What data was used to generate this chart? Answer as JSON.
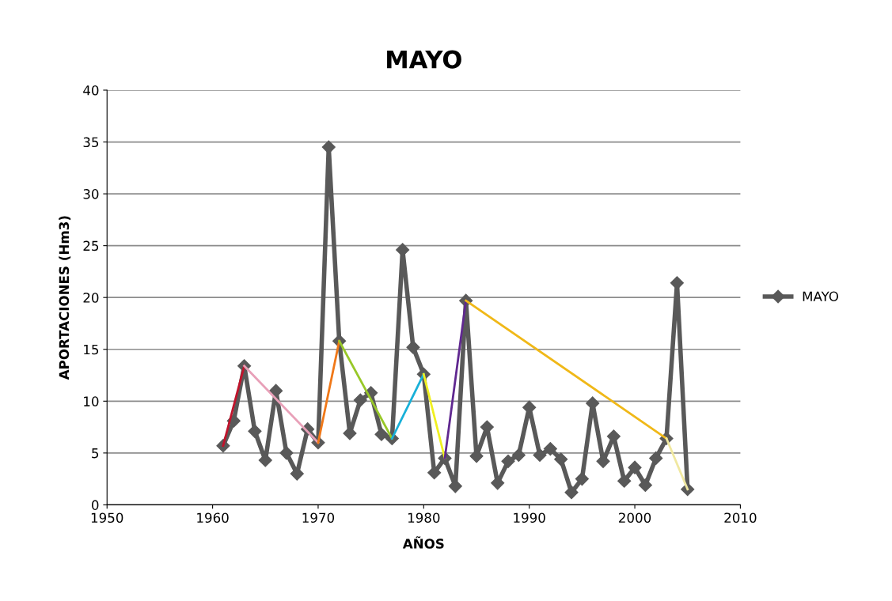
{
  "chart_data": {
    "type": "line",
    "title": "MAYO",
    "xlabel": "AÑOS",
    "ylabel": "APORTACIONES (Hm3)",
    "xlim": [
      1950,
      2010
    ],
    "xticks": [
      1950,
      1960,
      1970,
      1980,
      1990,
      2000,
      2010
    ],
    "ylim": [
      0,
      40
    ],
    "yticks": [
      0,
      5,
      10,
      15,
      20,
      25,
      30,
      35,
      40
    ],
    "grid": "y",
    "legend": "right",
    "marker": "diamond",
    "series": [
      {
        "name": "MAYO",
        "color": "#595959",
        "x": [
          1961,
          1962,
          1963,
          1964,
          1965,
          1966,
          1967,
          1968,
          1969,
          1970,
          1971,
          1972,
          1973,
          1974,
          1975,
          1976,
          1977,
          1978,
          1979,
          1980,
          1981,
          1982,
          1983,
          1984,
          1985,
          1986,
          1987,
          1988,
          1989,
          1990,
          1991,
          1992,
          1993,
          1994,
          1995,
          1996,
          1997,
          1998,
          1999,
          2000,
          2001,
          2002,
          2003,
          2004,
          2005
        ],
        "values": [
          5.7,
          8.1,
          13.4,
          7.1,
          4.3,
          11.0,
          5.0,
          3.0,
          7.3,
          6.0,
          34.5,
          15.8,
          6.9,
          10.1,
          10.8,
          6.8,
          6.4,
          24.6,
          15.2,
          12.6,
          3.1,
          4.5,
          1.8,
          19.7,
          4.7,
          7.5,
          2.1,
          4.2,
          4.8,
          9.4,
          4.8,
          5.4,
          4.4,
          1.2,
          2.5,
          9.8,
          4.2,
          6.6,
          2.3,
          3.6,
          1.9,
          4.5,
          6.4,
          21.4,
          1.5
        ]
      },
      {
        "color": "#c0142c",
        "marker": "none",
        "x": [
          1961,
          1963
        ],
        "values": [
          5.7,
          13.4
        ]
      },
      {
        "color": "#e8a0b8",
        "marker": "none",
        "x": [
          1963,
          1970
        ],
        "values": [
          13.4,
          6.0
        ]
      },
      {
        "color": "#f07818",
        "marker": "none",
        "x": [
          1970,
          1972
        ],
        "values": [
          6.0,
          15.8
        ]
      },
      {
        "color": "#98c828",
        "marker": "none",
        "x": [
          1972,
          1977
        ],
        "values": [
          15.8,
          6.4
        ]
      },
      {
        "color": "#18b0d8",
        "marker": "none",
        "x": [
          1977,
          1980
        ],
        "values": [
          6.4,
          12.6
        ]
      },
      {
        "color": "#f0f020",
        "marker": "none",
        "x": [
          1980,
          1982
        ],
        "values": [
          12.6,
          4.5
        ]
      },
      {
        "color": "#602890",
        "marker": "none",
        "x": [
          1982,
          1984
        ],
        "values": [
          4.5,
          19.7
        ]
      },
      {
        "color": "#f0b818",
        "marker": "none",
        "x": [
          1984,
          2003
        ],
        "values": [
          19.7,
          6.4
        ]
      },
      {
        "color": "#f0e8a0",
        "marker": "none",
        "x": [
          2003,
          2005
        ],
        "values": [
          6.4,
          1.5
        ]
      }
    ]
  }
}
